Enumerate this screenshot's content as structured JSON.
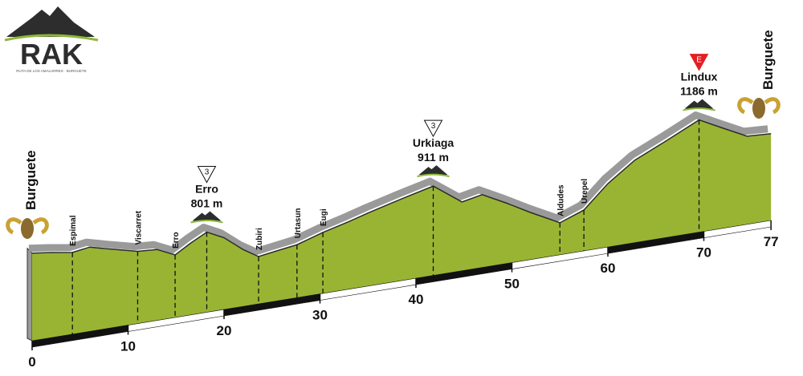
{
  "logo": {
    "title": "RAK",
    "subtitle": "RUTA DE LOS AMALURRES · BURGUETE"
  },
  "chart_data": {
    "type": "elevation-profile",
    "start": "Burguete",
    "finish": "Burguete",
    "profile": {
      "km": [
        0,
        2,
        4.2,
        6,
        8,
        11,
        13,
        14.9,
        16.5,
        18.2,
        20,
        22,
        23.6,
        25.5,
        27.6,
        30.3,
        33,
        35.1,
        38.5,
        41.8,
        44.8,
        46.9,
        49.5,
        51.9,
        55,
        57.5,
        60,
        62.8,
        66.1,
        69.5,
        72,
        74.5,
        77
      ],
      "elevation": [
        890,
        860,
        820,
        850,
        790,
        705,
        690,
        590,
        700,
        801,
        700,
        520,
        407,
        440,
        474,
        570,
        650,
        719,
        820,
        911,
        665,
        713,
        560,
        407,
        224,
        330,
        600,
        828,
        1000,
        1186,
        1040,
        897,
        880
      ]
    },
    "waypoints": {
      "names": [
        "Espimal",
        "Viscarret",
        "Erro",
        "Zubiri",
        "Urtasun",
        "Eugi",
        "Aldudes",
        "Urepel"
      ],
      "km": [
        4.2,
        11,
        14.9,
        23.6,
        27.6,
        30.3,
        55,
        57.5
      ]
    },
    "summits": {
      "names": [
        "Erro",
        "Urkiaga",
        "Lindux"
      ],
      "km": [
        18.2,
        41.8,
        69.5
      ],
      "values": [
        801,
        911,
        1186
      ],
      "value_labels": [
        "801 m",
        "911 m",
        "1186 m"
      ],
      "categories": [
        "3",
        "3",
        "E"
      ]
    },
    "xticks": [
      0,
      10,
      20,
      30,
      40,
      50,
      60,
      70,
      77
    ]
  }
}
